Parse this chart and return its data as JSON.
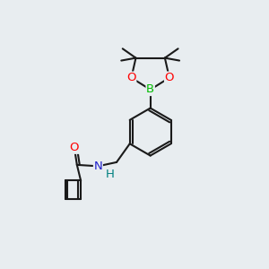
{
  "background_color": "#e8edf0",
  "bond_color": "#1a1a1a",
  "bond_width": 1.5,
  "atom_colors": {
    "O": "#ff0000",
    "N": "#2020cc",
    "B": "#00bb00",
    "H": "#008080",
    "C": "#1a1a1a"
  },
  "font_size": 9.5
}
